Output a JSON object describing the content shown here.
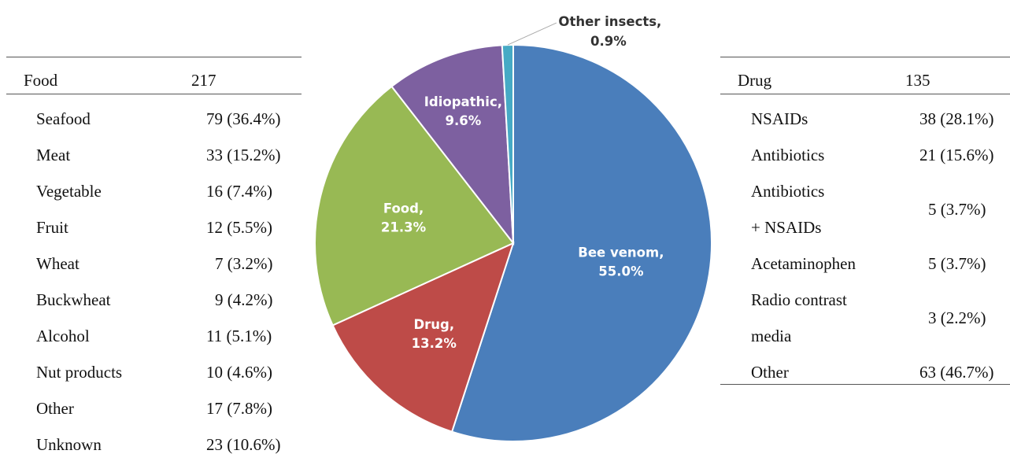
{
  "chart_data": {
    "type": "pie",
    "title": "",
    "slices": [
      {
        "label": "Bee venom",
        "value": 55.0,
        "display": "55.0%",
        "color": "#4a7ebb"
      },
      {
        "label": "Drug",
        "value": 13.2,
        "display": "13.2%",
        "color": "#be4b48"
      },
      {
        "label": "Food",
        "value": 21.3,
        "display": "21.3%",
        "color": "#98b954"
      },
      {
        "label": "Idiopathic",
        "value": 9.6,
        "display": "9.6%",
        "color": "#7d60a0"
      },
      {
        "label": "Other insects",
        "value": 0.9,
        "display": "0.9%",
        "color": "#46aac5"
      }
    ]
  },
  "food_table": {
    "header_label": "Food",
    "header_value": "217",
    "rows": [
      {
        "label": "Seafood",
        "value": "79 (36.4%)"
      },
      {
        "label": "Meat",
        "value": "33 (15.2%)"
      },
      {
        "label": "Vegetable",
        "value": "16 (7.4%)"
      },
      {
        "label": "Fruit",
        "value": "12 (5.5%)"
      },
      {
        "label": "Wheat",
        "value": "7 (3.2%)"
      },
      {
        "label": "Buckwheat",
        "value": "9 (4.2%)"
      },
      {
        "label": "Alcohol",
        "value": "11 (5.1%)"
      },
      {
        "label": "Nut products",
        "value": "10 (4.6%)"
      },
      {
        "label": "Other",
        "value": "17 (7.8%)"
      },
      {
        "label": "Unknown",
        "value": "23 (10.6%)"
      }
    ]
  },
  "drug_table": {
    "header_label": "Drug",
    "header_value": "135",
    "rows": [
      {
        "label": "NSAIDs",
        "value": "38 (28.1%)"
      },
      {
        "label": "Antibiotics",
        "value": "21 (15.6%)"
      },
      {
        "label_line1": "Antibiotics",
        "label_line2": "+ NSAIDs",
        "value": "5 (3.7%)"
      },
      {
        "label": "Acetaminophen",
        "value": "5 (3.7%)"
      },
      {
        "label_line1": "Radio contrast",
        "label_line2": "media",
        "value": "3 (2.2%)"
      },
      {
        "label": "Other",
        "value": "63 (46.7%)"
      }
    ]
  }
}
